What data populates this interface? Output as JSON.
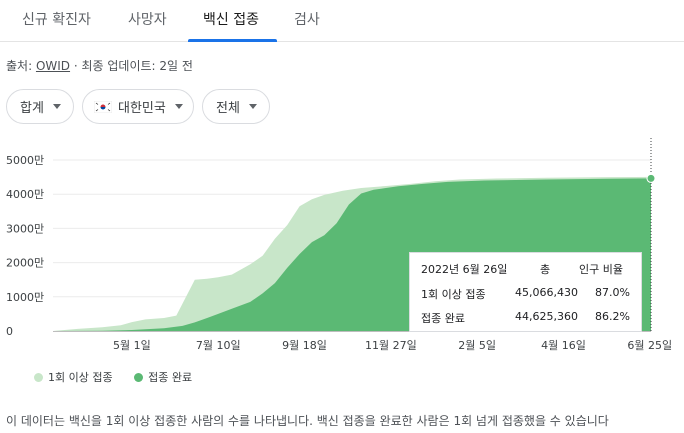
{
  "tabs": [
    {
      "label": "신규 확진자"
    },
    {
      "label": "사망자"
    },
    {
      "label": "백신 접종",
      "active": true
    },
    {
      "label": "검사"
    }
  ],
  "source": {
    "prefix": "출처: ",
    "link": "OWID",
    "suffix": " · 최종 업데이트: 2일 전"
  },
  "filters": {
    "metric": "합계",
    "region": "대한민국",
    "range": "전체"
  },
  "colors": {
    "dose1": "#c8e6c9",
    "complete": "#5bb974",
    "accent": "#1a73e8"
  },
  "tooltip": {
    "date": "2022년 6월 26일",
    "col_total": "총",
    "col_pct": "인구 비율",
    "rows": [
      {
        "label": "1회 이상 접종",
        "total": "45,066,430",
        "pct": "87.0%"
      },
      {
        "label": "접종 완료",
        "total": "44,625,360",
        "pct": "86.2%"
      }
    ]
  },
  "legend": {
    "dose1": "1회 이상 접종",
    "complete": "접종 완료"
  },
  "footnote": "이 데이터는 백신을 1회 이상 접종한 사람의 수를 나타냅니다. 백신 접종을 완료한 사람은 1회 넘게 접종했을 수 있습니다",
  "chart_data": {
    "type": "area",
    "y_tick_labels": [
      "0",
      "1000만",
      "2000만",
      "3000만",
      "4000만",
      "5000만"
    ],
    "x_tick_labels": [
      "5월 1일",
      "7월 10일",
      "9월 18일",
      "11월 27일",
      "2월 5일",
      "4월 16일",
      "6월 25일"
    ],
    "ylim": [
      0,
      50000000
    ],
    "x_unit": "days since 2021-02-26",
    "x_ticks_days": [
      64,
      134,
      204,
      274,
      344,
      414,
      484
    ],
    "series": [
      {
        "name": "1회 이상 접종",
        "x": [
          0,
          20,
          40,
          55,
          64,
          75,
          90,
          100,
          105,
          115,
          125,
          134,
          145,
          160,
          170,
          180,
          190,
          200,
          210,
          220,
          235,
          250,
          270,
          290,
          310,
          330,
          360,
          400,
          450,
          485
        ],
        "values": [
          0,
          600000,
          1100000,
          1700000,
          2600000,
          3400000,
          3800000,
          4500000,
          8000000,
          15000000,
          15300000,
          15700000,
          16500000,
          19500000,
          22000000,
          27000000,
          31000000,
          36500000,
          38500000,
          39800000,
          41000000,
          41800000,
          42400000,
          43000000,
          43800000,
          44300000,
          44600000,
          44800000,
          45000000,
          45066430
        ]
      },
      {
        "name": "접종 완료",
        "x": [
          0,
          40,
          64,
          90,
          105,
          115,
          125,
          134,
          145,
          160,
          170,
          180,
          190,
          200,
          210,
          220,
          230,
          240,
          250,
          260,
          270,
          280,
          300,
          320,
          350,
          400,
          450,
          485
        ],
        "values": [
          0,
          100000,
          300000,
          800000,
          1500000,
          2500000,
          3800000,
          5000000,
          6500000,
          8500000,
          11000000,
          14000000,
          18500000,
          22500000,
          26000000,
          28000000,
          31500000,
          37000000,
          40200000,
          41300000,
          41800000,
          42300000,
          43000000,
          43600000,
          44000000,
          44300000,
          44500000,
          44625360
        ]
      }
    ]
  }
}
